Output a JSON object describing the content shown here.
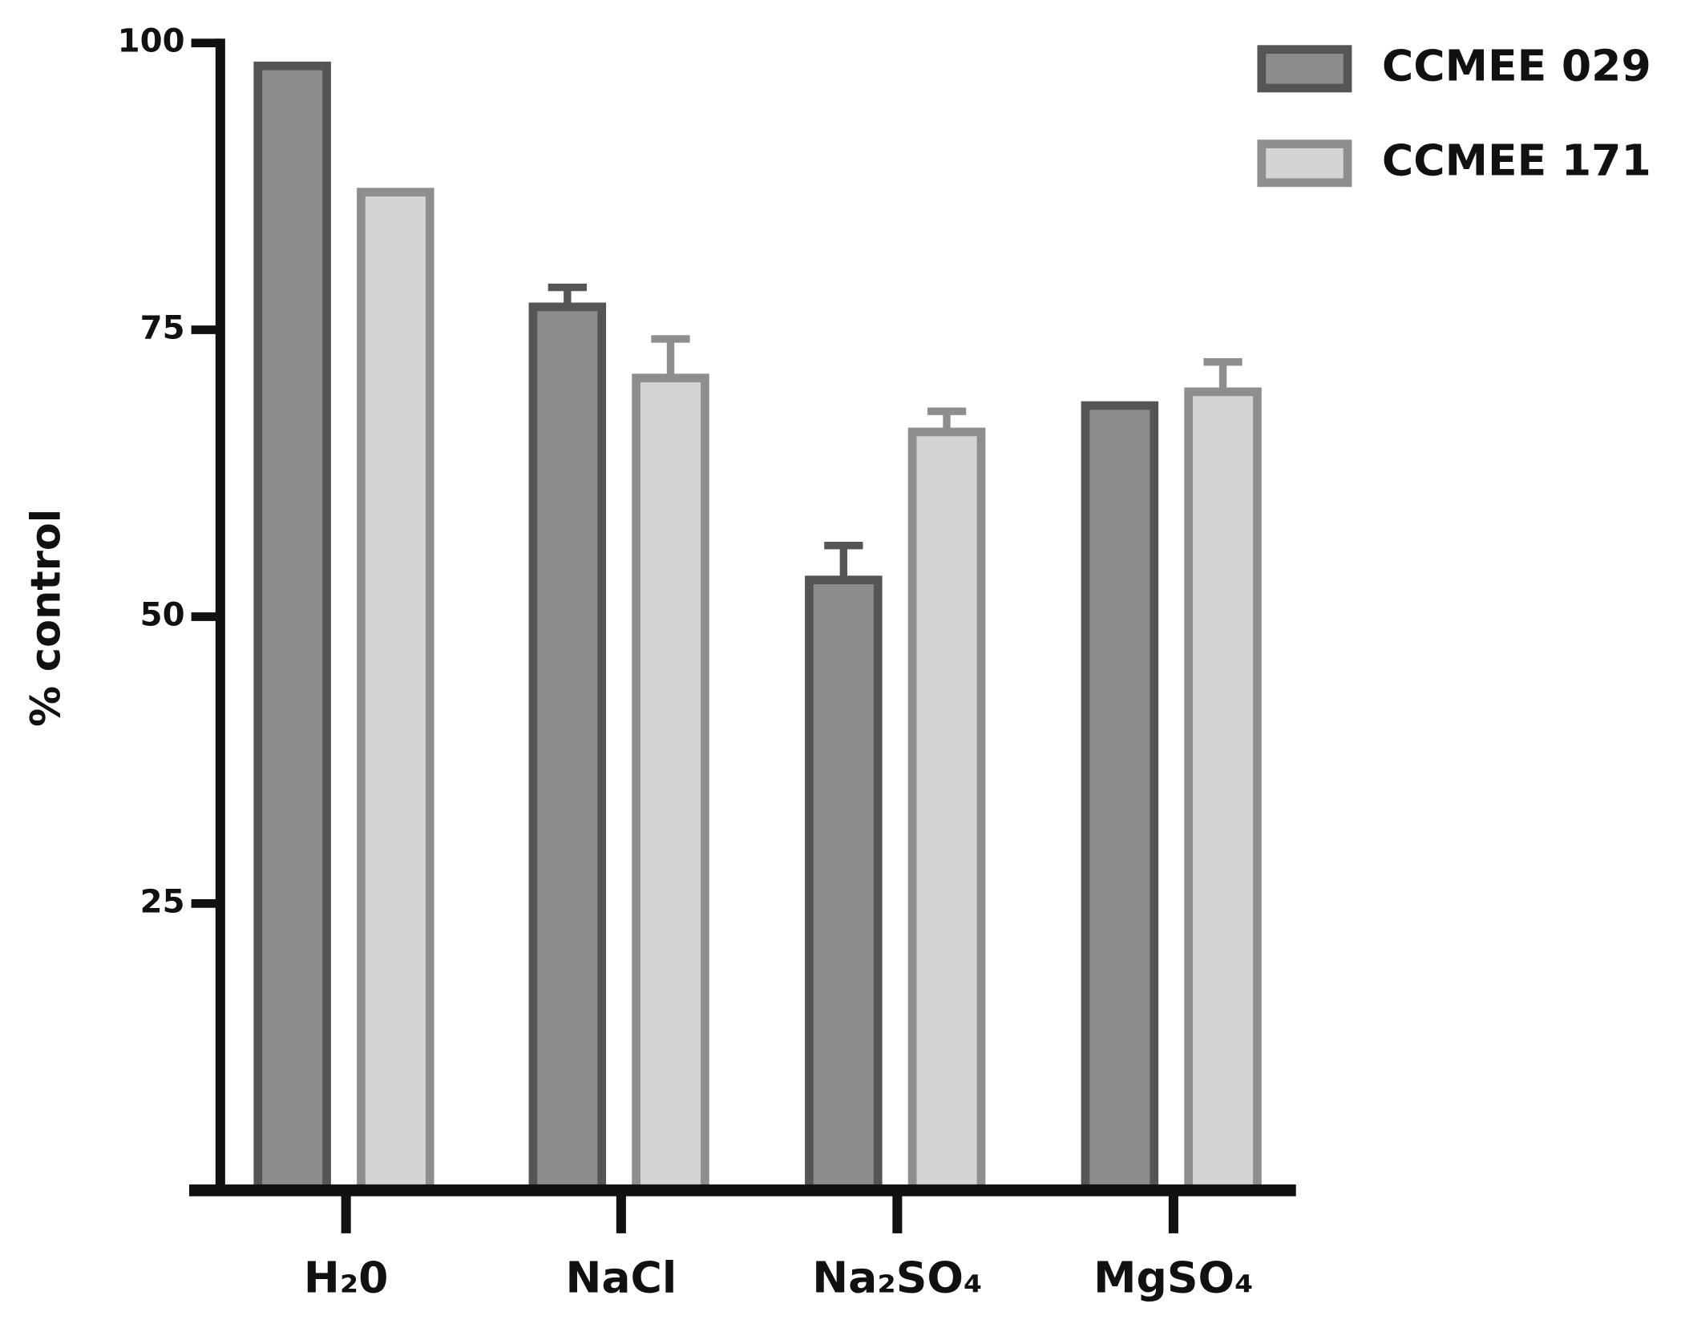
{
  "chart_data": {
    "type": "bar",
    "y_label": "% control",
    "categories": [
      "H₂0",
      "NaCl",
      "Na₂SO₄",
      "MgSO₄"
    ],
    "series": [
      {
        "name": "CCMEE 029",
        "color": "#8c8c8c",
        "edge_color": "#555555",
        "values": [
          98,
          77,
          53.2,
          68.4
        ],
        "errors": [
          null,
          1.7,
          3,
          null
        ]
      },
      {
        "name": "CCMEE 171",
        "color": "#d4d4d4",
        "edge_color": "#8e8e8e",
        "values": [
          87,
          70.8,
          66.1,
          69.6
        ],
        "errors": [
          null,
          3.4,
          1.8,
          2.6
        ]
      }
    ],
    "ylim": [
      0,
      100
    ],
    "yticks": [
      25,
      50,
      75,
      100
    ],
    "legend": "upper right"
  }
}
